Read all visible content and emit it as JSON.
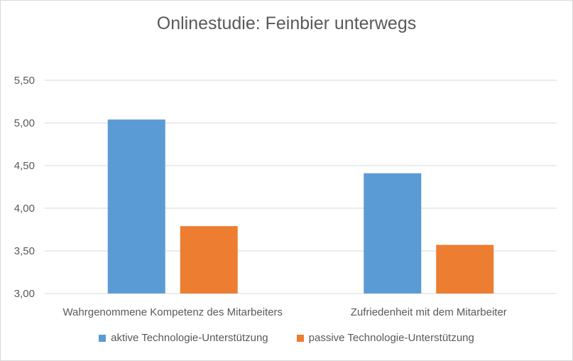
{
  "chart_data": {
    "type": "bar",
    "title": "Onlinestudie: Feinbier unterwegs",
    "categories": [
      "Wahrgenommene Kompetenz des Mitarbeiters",
      "Zufriedenheit mit dem Mitarbeiter"
    ],
    "series": [
      {
        "name": "aktive Technologie-Unterstützung",
        "color": "#5b9bd5",
        "values": [
          5.04,
          4.41
        ]
      },
      {
        "name": "passive Technologie-Unterstützung",
        "color": "#ed7d31",
        "values": [
          3.79,
          3.57
        ]
      }
    ],
    "ylim": [
      3.0,
      5.5
    ],
    "yticks": [
      "3,00",
      "3,50",
      "4,00",
      "4,50",
      "5,00",
      "5,50"
    ],
    "grid": true,
    "legend_position": "bottom"
  }
}
